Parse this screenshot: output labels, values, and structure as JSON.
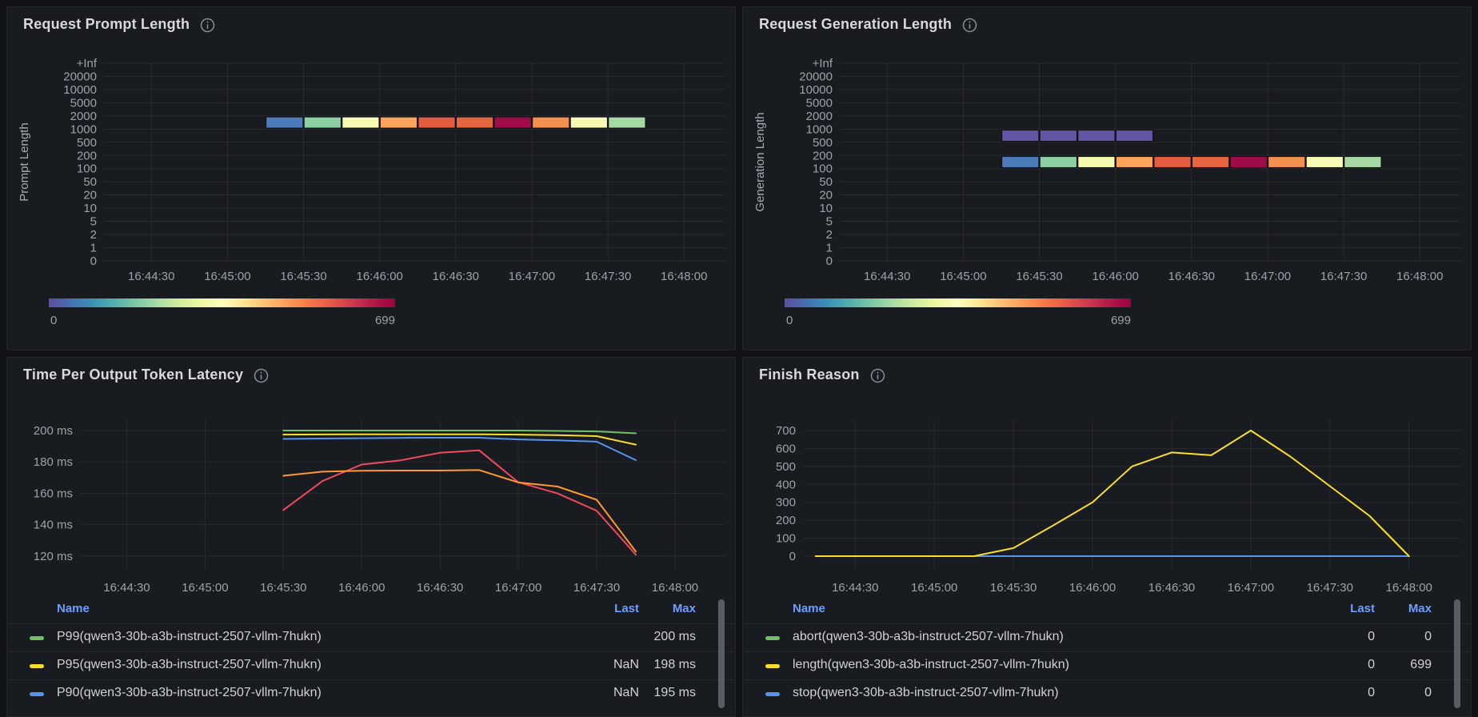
{
  "dashboard": {
    "panels": [
      {
        "title": "Request Prompt Length"
      },
      {
        "title": "Request Generation Length"
      },
      {
        "title": "Time Per Output Token Latency"
      },
      {
        "title": "Finish Reason"
      }
    ]
  },
  "colors": {
    "page_background": "#111217",
    "panel_background": "#181b1f",
    "title_text": "#d8d9da",
    "axis_text": "#9da2ab",
    "legend_header_link": "#6e9fff",
    "series_green": "#73bf69",
    "series_yellow": "#fade2a",
    "series_blue": "#5794f2",
    "series_orange": "#ff9830",
    "series_red": "#f2495c"
  },
  "chart_data": [
    {
      "type": "heatmap",
      "title": "Request Prompt Length",
      "ylabel": "Prompt Length",
      "y_ticks": [
        "+Inf",
        "20000",
        "10000",
        "5000",
        "2000",
        "1000",
        "500",
        "200",
        "100",
        "50",
        "20",
        "10",
        "5",
        "2",
        "1",
        "0"
      ],
      "x_ticks": [
        "16:44:30",
        "16:45:00",
        "16:45:30",
        "16:46:00",
        "16:46:30",
        "16:47:00",
        "16:47:30",
        "16:48:00"
      ],
      "x_tick_seconds": [
        30,
        60,
        90,
        120,
        150,
        180,
        210,
        240
      ],
      "x_domain_seconds": [
        11,
        256
      ],
      "colorbar": {
        "min": "0",
        "max": "699",
        "stops": [
          "#5e4fa2",
          "#4470b1",
          "#3a92b8",
          "#54aead",
          "#7bc8a4",
          "#a7dba4",
          "#d1ec9c",
          "#edf8a3",
          "#fdfebe",
          "#fee695",
          "#fdc171",
          "#fb9d59",
          "#f57948",
          "#e65948",
          "#d0384d",
          "#b01a47",
          "#9e0142"
        ]
      },
      "rows": [
        {
          "bucket": "1000-2000",
          "top_tick_index": 4,
          "start_s": 75,
          "cell_seconds": 15,
          "start_time": "16:45:15",
          "end_time": "16:47:45",
          "colors": [
            "#4d7cbb",
            "#8bcfa2",
            "#f6f9b0",
            "#f9a45a",
            "#e45c40",
            "#e8663f",
            "#a00b49",
            "#f2904f",
            "#f7f9b4",
            "#a6d8a4"
          ],
          "approx_counts": [
            130,
            250,
            360,
            470,
            560,
            550,
            680,
            495,
            355,
            290
          ]
        }
      ]
    },
    {
      "type": "heatmap",
      "title": "Request Generation Length",
      "ylabel": "Generation Length",
      "y_ticks": [
        "+Inf",
        "20000",
        "10000",
        "5000",
        "2000",
        "1000",
        "500",
        "200",
        "100",
        "50",
        "20",
        "10",
        "5",
        "2",
        "1",
        "0"
      ],
      "x_ticks": [
        "16:44:30",
        "16:45:00",
        "16:45:30",
        "16:46:00",
        "16:46:30",
        "16:47:00",
        "16:47:30",
        "16:48:00"
      ],
      "x_tick_seconds": [
        30,
        60,
        90,
        120,
        150,
        180,
        210,
        240
      ],
      "x_domain_seconds": [
        11,
        256
      ],
      "colorbar": {
        "min": "0",
        "max": "699",
        "stops": [
          "#5e4fa2",
          "#4470b1",
          "#3a92b8",
          "#54aead",
          "#7bc8a4",
          "#a7dba4",
          "#d1ec9c",
          "#edf8a3",
          "#fdfebe",
          "#fee695",
          "#fdc171",
          "#fb9d59",
          "#f57948",
          "#e65948",
          "#d0384d",
          "#b01a47",
          "#9e0142"
        ]
      },
      "rows": [
        {
          "bucket": "500-1000",
          "top_tick_index": 5,
          "start_s": 75,
          "cell_seconds": 15,
          "start_time": "16:45:15",
          "end_time": "16:46:15",
          "colors": [
            "#6056a5",
            "#6056a5",
            "#6056a5",
            "#6056a5"
          ],
          "approx_counts": [
            15,
            15,
            15,
            15
          ]
        },
        {
          "bucket": "100-200",
          "top_tick_index": 7,
          "start_s": 75,
          "cell_seconds": 15,
          "start_time": "16:45:15",
          "end_time": "16:47:45",
          "colors": [
            "#4d7cbb",
            "#8bcfa2",
            "#f6f9b0",
            "#f9a45a",
            "#e45c40",
            "#e8663f",
            "#a00b49",
            "#f2904f",
            "#f7f9b4",
            "#a6d8a4"
          ],
          "approx_counts": [
            130,
            250,
            360,
            470,
            560,
            550,
            680,
            495,
            355,
            290
          ]
        }
      ]
    },
    {
      "type": "line",
      "title": "Time Per Output Token Latency",
      "unit": "ms",
      "y_ticks": [
        "200 ms",
        "180 ms",
        "160 ms",
        "140 ms",
        "120 ms"
      ],
      "y_tick_values": [
        200,
        180,
        160,
        140,
        120
      ],
      "ylim": [
        111.3,
        206.6
      ],
      "x_ticks": [
        "16:44:30",
        "16:45:00",
        "16:45:30",
        "16:46:00",
        "16:46:30",
        "16:47:00",
        "16:47:30",
        "16:48:00"
      ],
      "x_tick_seconds": [
        30,
        60,
        90,
        120,
        150,
        180,
        210,
        240
      ],
      "x_domain_seconds": [
        12.4,
        259
      ],
      "series": [
        {
          "name": "P99(qwen3-30b-a3b-instruct-2507-vllm-7hukn)",
          "color": "#73bf69",
          "x_s": [
            90,
            105,
            120,
            135,
            150,
            165,
            180,
            195,
            210,
            225
          ],
          "y": [
            200,
            200,
            200,
            200,
            200,
            200,
            200,
            199.7,
            199.4,
            198.2
          ]
        },
        {
          "name": "P95(qwen3-30b-a3b-instruct-2507-vllm-7hukn)",
          "color": "#fade2a",
          "x_s": [
            90,
            105,
            120,
            135,
            150,
            165,
            180,
            195,
            210,
            225
          ],
          "y": [
            197.4,
            197.5,
            197.6,
            197.6,
            197.6,
            197.6,
            197.4,
            197,
            196.4,
            191
          ]
        },
        {
          "name": "P90(qwen3-30b-a3b-instruct-2507-vllm-7hukn)",
          "color": "#5794f2",
          "x_s": [
            90,
            105,
            120,
            135,
            150,
            165,
            180,
            195,
            210,
            225
          ],
          "y": [
            194.6,
            194.9,
            195.1,
            195.3,
            195.4,
            195.4,
            194.3,
            193.7,
            192.9,
            181.1
          ]
        },
        {
          "name": "",
          "color": "#ff9830",
          "x_s": [
            90,
            105,
            120,
            135,
            150,
            165,
            180,
            195,
            210,
            225
          ],
          "y": [
            171.2,
            173.8,
            174.4,
            174.5,
            174.5,
            174.8,
            166.9,
            164.3,
            155.9,
            122.9
          ]
        },
        {
          "name": "",
          "color": "#f2495c",
          "x_s": [
            90,
            105,
            120,
            135,
            150,
            165,
            180,
            195,
            210,
            225
          ],
          "y": [
            149.3,
            167.8,
            178.3,
            181,
            185.8,
            187.4,
            167,
            159.9,
            148.9,
            120.9
          ]
        }
      ],
      "legend": {
        "headers": [
          "Name",
          "Last",
          "Max"
        ],
        "rows": [
          {
            "swatch": "#73bf69",
            "name": "P99(qwen3-30b-a3b-instruct-2507-vllm-7hukn)",
            "last": "",
            "max": "200 ms"
          },
          {
            "swatch": "#fade2a",
            "name": "P95(qwen3-30b-a3b-instruct-2507-vllm-7hukn)",
            "last": "NaN",
            "max": "198 ms"
          },
          {
            "swatch": "#5794f2",
            "name": "P90(qwen3-30b-a3b-instruct-2507-vllm-7hukn)",
            "last": "NaN",
            "max": "195 ms"
          }
        ]
      }
    },
    {
      "type": "line",
      "title": "Finish Reason",
      "y_ticks": [
        "700",
        "600",
        "500",
        "400",
        "300",
        "200",
        "100",
        "0"
      ],
      "y_tick_values": [
        700,
        600,
        500,
        400,
        300,
        200,
        100,
        0
      ],
      "ylim": [
        -76,
        758
      ],
      "x_ticks": [
        "16:44:30",
        "16:45:00",
        "16:45:30",
        "16:46:00",
        "16:46:30",
        "16:47:00",
        "16:47:30",
        "16:48:00"
      ],
      "x_tick_seconds": [
        30,
        60,
        90,
        120,
        150,
        180,
        210,
        240
      ],
      "x_domain_seconds": [
        10.5,
        259.5
      ],
      "series": [
        {
          "name": "length(qwen3-30b-a3b-instruct-2507-vllm-7hukn)",
          "color": "#fade2a",
          "x_s": [
            15,
            75,
            90,
            105,
            120,
            135,
            150,
            165,
            180,
            195,
            210,
            225,
            240
          ],
          "y": [
            0,
            0,
            45,
            170,
            300,
            500,
            578,
            562,
            700,
            555,
            390,
            225,
            0
          ]
        },
        {
          "name": "stop(qwen3-30b-a3b-instruct-2507-vllm-7hukn)",
          "color": "#5794f2",
          "x_s": [
            15,
            240
          ],
          "y": [
            0,
            0
          ]
        },
        {
          "name": "abort(qwen3-30b-a3b-instruct-2507-vllm-7hukn)",
          "color": "#73bf69",
          "x_s": [
            15,
            240
          ],
          "y": [
            0,
            0
          ]
        }
      ],
      "legend": {
        "headers": [
          "Name",
          "Last",
          "Max"
        ],
        "rows": [
          {
            "swatch": "#73bf69",
            "name": "abort(qwen3-30b-a3b-instruct-2507-vllm-7hukn)",
            "last": "0",
            "max": "0"
          },
          {
            "swatch": "#fade2a",
            "name": "length(qwen3-30b-a3b-instruct-2507-vllm-7hukn)",
            "last": "0",
            "max": "699"
          },
          {
            "swatch": "#5794f2",
            "name": "stop(qwen3-30b-a3b-instruct-2507-vllm-7hukn)",
            "last": "0",
            "max": "0"
          }
        ]
      }
    }
  ]
}
